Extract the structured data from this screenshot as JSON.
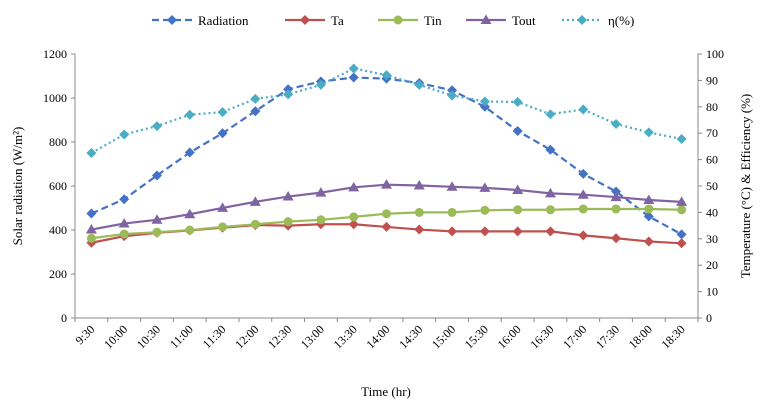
{
  "chart_data": {
    "type": "line",
    "categories": [
      "9:30",
      "10:00",
      "10:30",
      "11:00",
      "11:30",
      "12:00",
      "12:30",
      "13:00",
      "13:30",
      "14:00",
      "14:30",
      "15:00",
      "15:30",
      "16:00",
      "16:30",
      "17:00",
      "17:30",
      "18:00",
      "18:30"
    ],
    "xlabel": "Time (hr)",
    "ylabel_left": "Solar radiation (W/m²)",
    "ylabel_right": "Temperature (°C) & Efficiency (%)",
    "ylim_left": [
      0,
      1200
    ],
    "ylim_right": [
      0,
      100
    ],
    "yticks_left": [
      0,
      200,
      400,
      600,
      800,
      1000,
      1200
    ],
    "yticks_right": [
      0,
      10,
      20,
      30,
      40,
      50,
      60,
      70,
      80,
      90,
      100
    ],
    "grid": false,
    "legend_position": "top",
    "series": [
      {
        "name": "Radiation",
        "axis": "left",
        "color": "#4472C4",
        "style": "dashed",
        "marker": "diamond",
        "values": [
          475,
          540,
          648,
          752,
          840,
          940,
          1040,
          1075,
          1093,
          1088,
          1068,
          1035,
          960,
          850,
          765,
          655,
          575,
          462,
          380
        ]
      },
      {
        "name": "Ta",
        "axis": "right",
        "color": "#C0504D",
        "style": "solid",
        "marker": "diamond",
        "values": [
          28.5,
          31,
          32.3,
          33.2,
          34.2,
          35.2,
          35,
          35.5,
          35.5,
          34.5,
          33.5,
          32.8,
          32.8,
          32.8,
          32.8,
          31.3,
          30.2,
          29,
          28.3
        ]
      },
      {
        "name": "Tin",
        "axis": "right",
        "color": "#9BBB59",
        "style": "solid",
        "marker": "circle",
        "values": [
          30.2,
          31.8,
          32.5,
          33.3,
          34.5,
          35.5,
          36.5,
          37.2,
          38.3,
          39.5,
          40,
          40,
          40.8,
          41,
          41,
          41.3,
          41.3,
          41.3,
          41
        ]
      },
      {
        "name": "Tout",
        "axis": "right",
        "color": "#8064A2",
        "style": "solid",
        "marker": "triangle",
        "values": [
          33.5,
          35.8,
          37.2,
          39.3,
          41.7,
          44,
          46,
          47.5,
          49.5,
          50.5,
          50.2,
          49.7,
          49.3,
          48.5,
          47.2,
          46.7,
          45.8,
          44.7,
          44
        ]
      },
      {
        "name": "η(%)",
        "axis": "right",
        "color": "#4BACC6",
        "style": "dotted",
        "marker": "diamond",
        "values": [
          62.5,
          69.5,
          72.7,
          77,
          78,
          83,
          84.7,
          88.3,
          94.5,
          92,
          88.3,
          84.3,
          82,
          81.8,
          77.2,
          79,
          73.5,
          70.3,
          67.8
        ]
      }
    ]
  }
}
